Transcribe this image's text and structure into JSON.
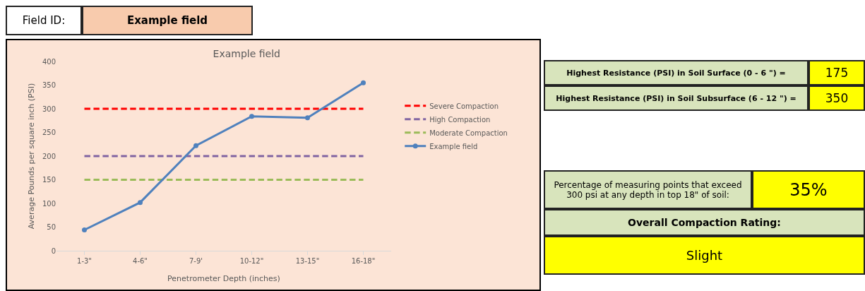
{
  "chart_data": [
    {
      "type": "other",
      "annotations": [
        "Field ID:",
        "Example field"
      ]
    },
    {
      "type": "line",
      "title": "Example field",
      "xlabel": "Penetrometer Depth (inches)",
      "ylabel": "Average Pounds per square inch (PSI)",
      "categories": [
        "1-3\"",
        "4-6\"",
        "7-9'",
        "10-12\"",
        "13-15\"",
        "16-18\""
      ],
      "series": [
        {
          "name": "Severe Compaction",
          "color": "#ff0000",
          "values": [
            300,
            300,
            300,
            300,
            300,
            300
          ],
          "line_style": "dashed",
          "marker": "none"
        },
        {
          "name": "High Compaction",
          "color": "#8064a2",
          "values": [
            200,
            200,
            200,
            200,
            200,
            200
          ],
          "line_style": "dashed",
          "marker": "none"
        },
        {
          "name": "Moderate Compaction",
          "color": "#9bbb59",
          "values": [
            150,
            150,
            150,
            150,
            150,
            150
          ],
          "line_style": "dashed",
          "marker": "none"
        },
        {
          "name": "Example field",
          "color": "#4f81bd",
          "values": [
            44,
            102,
            222,
            284,
            281,
            355
          ],
          "line_style": "solid",
          "marker": "circle"
        }
      ],
      "ylim": [
        0,
        400
      ],
      "yticks": [
        0,
        50,
        100,
        150,
        200,
        250,
        300,
        350,
        400
      ],
      "grid": false,
      "legend": "right"
    },
    {
      "type": "other",
      "annotations": [
        "Highest Resistance (PSI) in Soil Surface (0 - 6 \") =",
        "175",
        "Highest Resistance (PSI) in Soil Subsurface (6 - 12 \") =",
        "350",
        "Percentage of measuring points that exceed 300 psi at any depth in top 18\" of soil:",
        "35%",
        "Overall Compaction Rating:",
        "Slight"
      ]
    }
  ]
}
